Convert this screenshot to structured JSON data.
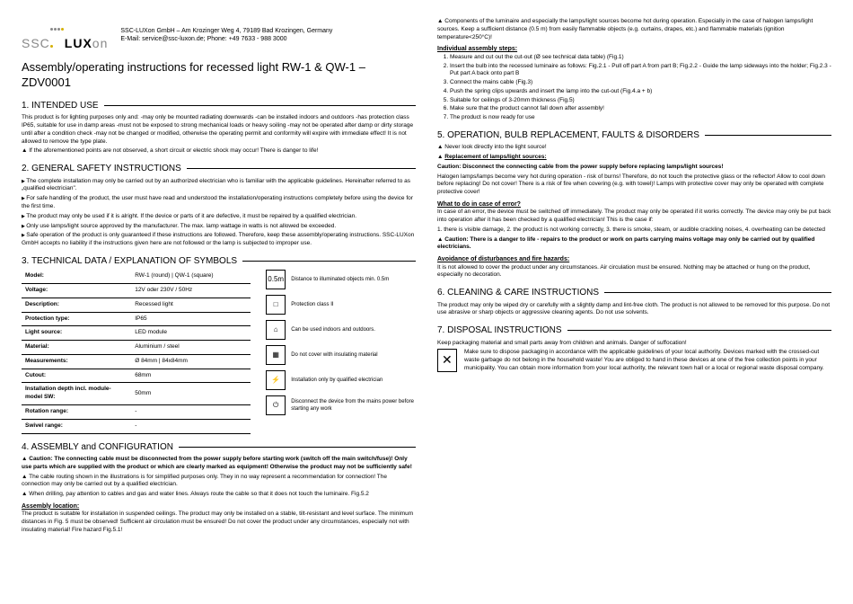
{
  "header": {
    "company": "SSC-LUXon GmbH – Am Krozinger Weg 4, 79189 Bad Krozingen, Germany",
    "contact": "E-Mail: service@ssc-luxon.de; Phone: +49 7633 - 988 3000",
    "title": "Assembly/operating instructions for recessed light RW-1 & QW-1 – ZDV0001"
  },
  "s1": {
    "h": "1. INTENDED USE",
    "p1": "This product is for lighting purposes only and: -may only be mounted radiating downwards -can be installed indoors and outdoors -has protection class IP65, suitable for use in damp areas -must not be exposed to strong mechanical loads or heavy soiling -may not be operated after damp or dirty storage until after a condition check -may not be changed or modified, otherwise the operating permit and conformity will expire with immediate effect! It is not allowed to remove the type plate.",
    "w1": "If the aforementioned points are not observed, a short circuit or electric shock may occur! There is danger to life!"
  },
  "s2": {
    "h": "2. GENERAL SAFETY INSTRUCTIONS",
    "b1": "The complete installation may only be carried out by an authorized electrician who is familiar with the applicable guidelines. Hereinafter referred to as „qualified electrician\".",
    "b2": "For safe handling of the product, the user must have read and understood the installation/operating instructions completely before using the device for the first time.",
    "b3": "The product may only be used if it is alright. If the device or parts of it are defective, it must be repaired by a qualified electrician.",
    "b4": "Only use lamps/light source approved by the manufacturer. The max. lamp wattage in watts is not allowed be exceeded.",
    "b5": "Safe operation of the product is only guaranteed if these instructions are followed. Therefore, keep these assembly/operating instructions. SSC-LUXon GmbH accepts no liability if the instructions given here are not followed or the lamp is subjected to improper use."
  },
  "s3": {
    "h": "3. TECHNICAL DATA / EXPLANATION OF SYMBOLS",
    "rows": [
      [
        "Model:",
        "RW-1 (round) | QW-1 (square)"
      ],
      [
        "Voltage:",
        "12V oder 230V / 50Hz"
      ],
      [
        "Description:",
        "Recessed light"
      ],
      [
        "Protection type:",
        "IP65"
      ],
      [
        "Light source:",
        "LED module"
      ],
      [
        "Material:",
        "Aluminium / steel"
      ],
      [
        "Measurements:",
        "Ø 84mm | 84x84mm"
      ],
      [
        "Cutout:",
        "68mm"
      ],
      [
        "Installation depth incl. module-model SW:",
        "50mm"
      ],
      [
        "Rotation range:",
        "-"
      ],
      [
        "Swivel range:",
        "-"
      ]
    ],
    "syms": [
      "Distance to illuminated objects min. 0.5m",
      "Protection class II",
      "Can be used indoors and outdoors.",
      "Do not cover with insulating material",
      "Installation only by qualified electrician",
      "Disconnect the device from the mains power before starting any work"
    ]
  },
  "s4": {
    "h": "4. ASSEMBLY and CONFIGURATION",
    "w1": "Caution: The connecting cable must be disconnected from the power supply before starting work (switch off the main switch/fuse)! Only use parts which are supplied with the product or which are clearly marked as equipment! Otherwise the product may not be sufficiently safe!",
    "w2": "The cable routing shown in the illustrations is for simplified purposes only. They in no way represent a recommendation for connection! The connection may only be carried out by a qualified electrician.",
    "w3": "When drilling, pay attention to cables and gas and water lines. Always route the cable so that it does not touch the luminaire. Fig.5.2",
    "sub": "Assembly location:",
    "p1": "The product is suitable for installation in suspended ceilings. The product may only be installed on a stable, tilt-resistant and level surface. The minimum distances in Fig. 5 must be observed! Sufficient air circulation must be ensured! Do not cover the product under any circumstances, especially not with insulating material! Fire hazard Fig.5.1!"
  },
  "r1": {
    "w1": "Components of the luminaire and especially the lamps/light sources become hot during operation. Especially in the case of halogen lamps/light sources. Keep a sufficient distance (0.5 m) from easily flammable objects (e.g. curtains, drapes, etc.) and flammable materials (ignition temperature<250°C)!",
    "sub": "Individual assembly steps:",
    "steps": [
      "Measure and cut out the cut-out (Ø see technical data table) (Fig.1)",
      "Insert the bulb into the recessed luminaire as follows: Fig.2.1 - Pull off part A from part B; Fig.2.2 - Guide the lamp sideways into the holder; Fig.2.3 - Put part A back onto part B",
      "Connect the mains cable (Fig.3)",
      "Push the spring clips upwards and insert the lamp into the cut-out (Fig.4.a + b)",
      "Suitable for ceilings of 3-20mm thickness (Fig.5)",
      "Make sure that the product cannot fall down after assembly!",
      "The product is now ready for use"
    ]
  },
  "s5": {
    "h": "5. OPERATION, BULB REPLACEMENT, FAULTS & DISORDERS",
    "w1": "Never look directly into the light source!",
    "w2": "Replacement of lamps/light sources:",
    "c1": "Caution: Disconnect the connecting cable from the power supply before replacing lamps/light sources!",
    "p1": "Halogen lamps/lamps become very hot during operation - risk of burns! Therefore, do not touch the protective glass or the reflector! Allow to cool down before replacing! Do not cover! There is a risk of fire when covering (e.g. with towel)! Lamps with protective cover may only be operated with complete protective cover!",
    "sub2": "What to do in case of error?",
    "p2": "In case of an error, the device must be switched off immediately. The product may only be operated if it works correctly. The device may only be put back into operation after it has been checked by a qualified electrician! This is the case if:",
    "p3": "1. there is visible damage, 2. the product is not working correctly, 3. there is smoke, steam, or audible crackling noises, 4. overheating can be detected",
    "w3": "Caution: There is a danger to life - repairs to the product or work on parts carrying mains voltage may only be carried out by qualified electricians.",
    "sub3": "Avoidance of disturbances and fire hazards:",
    "p4": "It is not allowed to cover the product under any circumstances. Air circulation must be ensured. Nothing may be attached or hung on the product, especially no decoration."
  },
  "s6": {
    "h": "6. CLEANING & CARE INSTRUCTIONS",
    "p1": "The product may only be wiped dry or carefully with a slightly damp and lint-free cloth. The product is not allowed to be removed for this purpose. Do not use abrasive or sharp objects or aggressive cleaning agents. Do not use solvents."
  },
  "s7": {
    "h": "7. DISPOSAL INSTRUCTIONS",
    "p1": "Keep packaging material and small parts away from children and animals. Danger of suffocation!",
    "p2": "Make sure to dispose packaging in accordance with the applicable guidelines of your local authority. Devices marked with the crossed-out waste garbage do not belong in the household waste! You are obliged to hand in these devices at one of the free collection points in your municipality. You can obtain more information from your local authority, the relevant town hall or a local or regional waste disposal company."
  }
}
